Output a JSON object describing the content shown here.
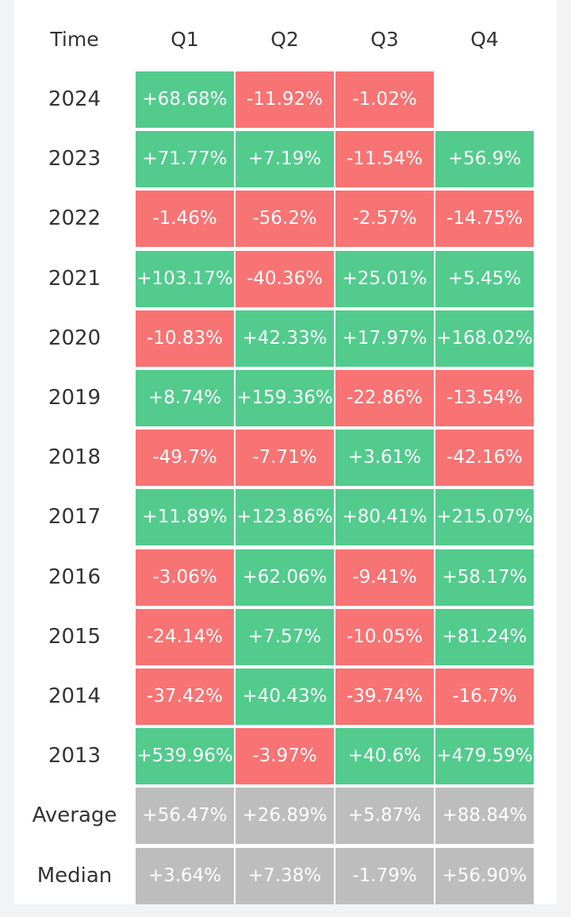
{
  "colors": {
    "positive": "#52cb8d",
    "negative": "#f87373",
    "summary": "#bdbdbd"
  },
  "chart_data": {
    "type": "table",
    "header": [
      "Time",
      "Q1",
      "Q2",
      "Q3",
      "Q4"
    ],
    "rows": [
      {
        "label": "2024",
        "values": [
          "+68.68%",
          "-11.92%",
          "-1.02%",
          ""
        ]
      },
      {
        "label": "2023",
        "values": [
          "+71.77%",
          "+7.19%",
          "-11.54%",
          "+56.9%"
        ]
      },
      {
        "label": "2022",
        "values": [
          "-1.46%",
          "-56.2%",
          "-2.57%",
          "-14.75%"
        ]
      },
      {
        "label": "2021",
        "values": [
          "+103.17%",
          "-40.36%",
          "+25.01%",
          "+5.45%"
        ]
      },
      {
        "label": "2020",
        "values": [
          "-10.83%",
          "+42.33%",
          "+17.97%",
          "+168.02%"
        ]
      },
      {
        "label": "2019",
        "values": [
          "+8.74%",
          "+159.36%",
          "-22.86%",
          "-13.54%"
        ]
      },
      {
        "label": "2018",
        "values": [
          "-49.7%",
          "-7.71%",
          "+3.61%",
          "-42.16%"
        ]
      },
      {
        "label": "2017",
        "values": [
          "+11.89%",
          "+123.86%",
          "+80.41%",
          "+215.07%"
        ]
      },
      {
        "label": "2016",
        "values": [
          "-3.06%",
          "+62.06%",
          "-9.41%",
          "+58.17%"
        ]
      },
      {
        "label": "2015",
        "values": [
          "-24.14%",
          "+7.57%",
          "-10.05%",
          "+81.24%"
        ]
      },
      {
        "label": "2014",
        "values": [
          "-37.42%",
          "+40.43%",
          "-39.74%",
          "-16.7%"
        ]
      },
      {
        "label": "2013",
        "values": [
          "+539.96%",
          "-3.97%",
          "+40.6%",
          "+479.59%"
        ]
      },
      {
        "label": "Average",
        "summary": true,
        "values": [
          "+56.47%",
          "+26.89%",
          "+5.87%",
          "+88.84%"
        ]
      },
      {
        "label": "Median",
        "summary": true,
        "values": [
          "+3.64%",
          "+7.38%",
          "-1.79%",
          "+56.90%"
        ]
      }
    ]
  }
}
